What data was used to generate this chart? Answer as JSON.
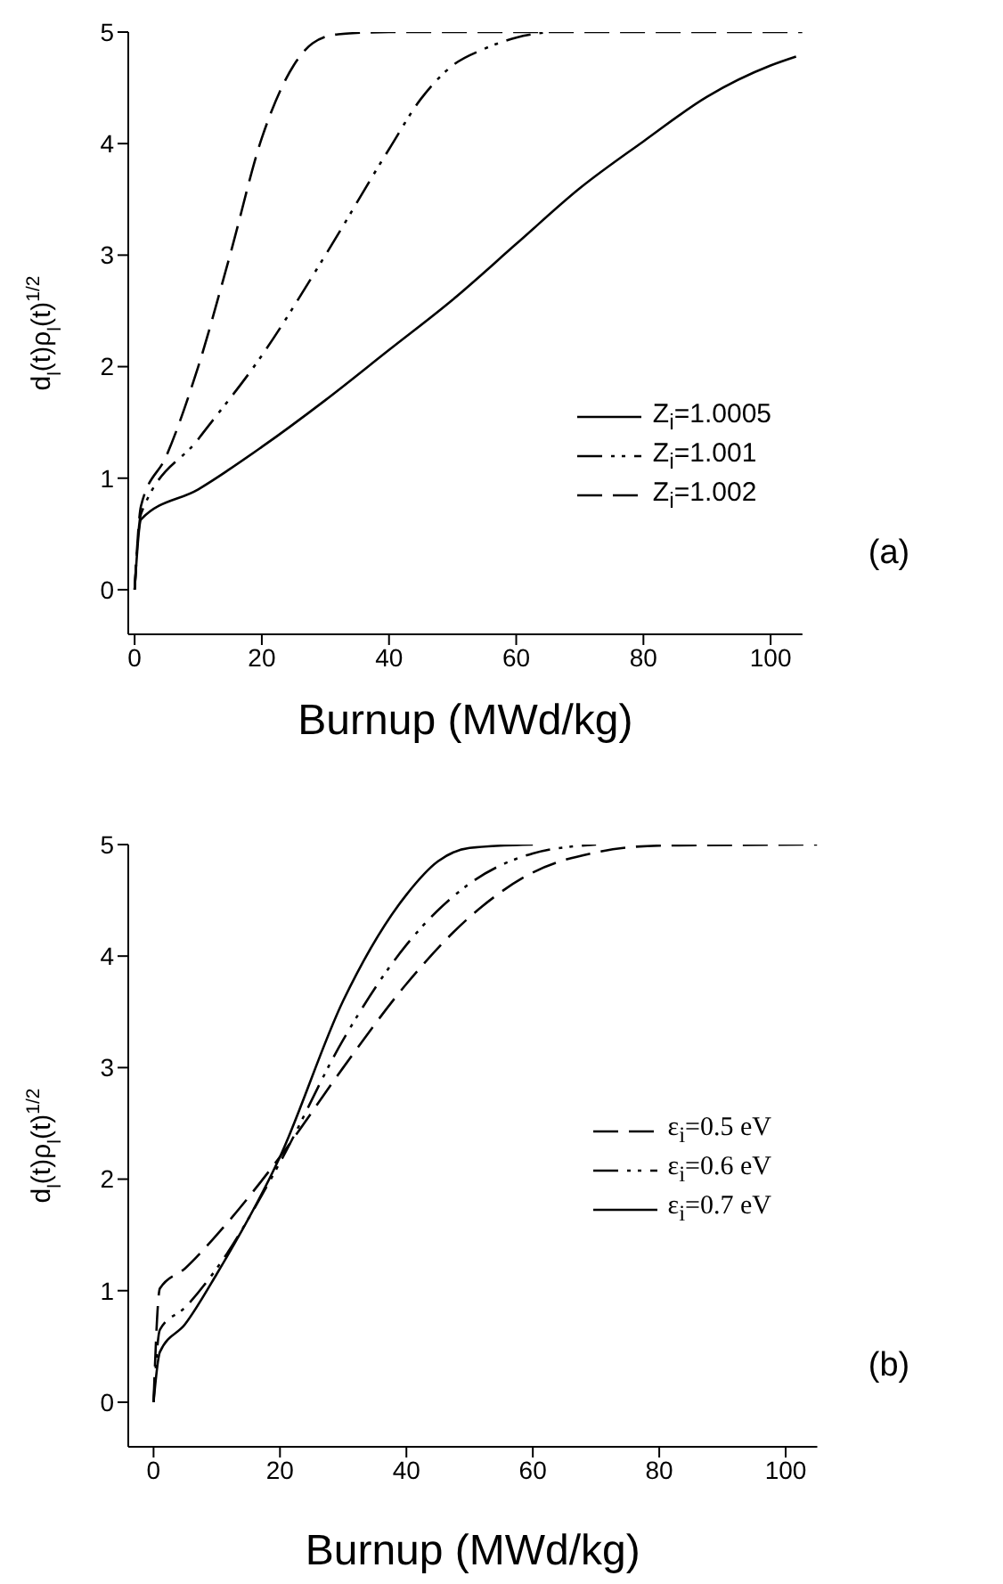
{
  "chart_data": [
    {
      "type": "line",
      "xlabel": "Burnup (MWd/kg)",
      "ylabel": "d$_{l}$(t)ρ$_{l}$(t)$^{1/2}$",
      "xlim": [
        -1,
        105
      ],
      "ylim": [
        -0.4,
        5
      ],
      "xticks": [
        0,
        20,
        40,
        60,
        80,
        100
      ],
      "yticks": [
        0,
        1,
        2,
        3,
        4,
        5
      ],
      "grid": false,
      "legend": "right",
      "marker": "none",
      "annotations": [
        "(a)"
      ],
      "series": [
        {
          "name": "Z$_{i}$=1.0005",
          "color": "#000000",
          "line_style": "solid",
          "x": [
            0,
            1,
            10,
            20,
            30,
            40,
            50,
            60,
            70,
            80,
            90,
            100,
            104
          ],
          "values": [
            0,
            0.63,
            0.9,
            1.28,
            1.7,
            2.15,
            2.6,
            3.1,
            3.6,
            4.02,
            4.42,
            4.7,
            4.78
          ]
        },
        {
          "name": "Z$_{i}$=1.001",
          "color": "#000000",
          "line_style": "dashdotdot",
          "x": [
            0,
            1,
            10,
            20,
            30,
            40,
            45,
            50,
            55,
            60,
            65
          ],
          "values": [
            0,
            0.68,
            1.35,
            2.1,
            3.0,
            3.95,
            4.4,
            4.7,
            4.85,
            4.95,
            5.0
          ]
        },
        {
          "name": "Z$_{i}$=1.002",
          "color": "#000000",
          "line_style": "dashed",
          "x": [
            0,
            1,
            5,
            10,
            15,
            20,
            25,
            28,
            32,
            40,
            105
          ],
          "values": [
            0,
            0.75,
            1.2,
            2.0,
            3.0,
            4.05,
            4.7,
            4.9,
            4.98,
            5.0,
            5.0
          ]
        }
      ]
    },
    {
      "type": "line",
      "xlabel": "Burnup (MWd/kg)",
      "ylabel": "d$_{l}$(t)ρ$_{l}$(t)$^{1/2}$",
      "xlim": [
        -4,
        105
      ],
      "ylim": [
        -0.4,
        5
      ],
      "xticks": [
        0,
        20,
        40,
        60,
        80,
        100
      ],
      "yticks": [
        0,
        1,
        2,
        3,
        4,
        5
      ],
      "grid": false,
      "legend": "right",
      "marker": "none",
      "annotations": [
        "(b)"
      ],
      "series": [
        {
          "name": "ε$_{i}$=0.5 eV",
          "color": "#000000",
          "line_style": "dashed",
          "x": [
            0,
            1,
            5,
            10,
            20,
            30,
            40,
            50,
            60,
            70,
            80,
            105
          ],
          "values": [
            0,
            1.02,
            1.2,
            1.5,
            2.2,
            3.0,
            3.75,
            4.35,
            4.75,
            4.93,
            4.99,
            5.0
          ]
        },
        {
          "name": "ε$_{i}$=0.6 eV",
          "color": "#000000",
          "line_style": "dashdotdot",
          "x": [
            0,
            1,
            5,
            10,
            20,
            30,
            40,
            50,
            60,
            70
          ],
          "values": [
            0,
            0.65,
            0.85,
            1.2,
            2.15,
            3.25,
            4.1,
            4.65,
            4.92,
            5.0
          ]
        },
        {
          "name": "ε$_{i}$=0.7 eV",
          "color": "#000000",
          "line_style": "solid",
          "x": [
            0,
            1,
            5,
            10,
            20,
            30,
            40,
            45,
            50,
            60
          ],
          "values": [
            0,
            0.45,
            0.7,
            1.15,
            2.2,
            3.6,
            4.55,
            4.85,
            4.97,
            5.0
          ]
        }
      ]
    }
  ]
}
